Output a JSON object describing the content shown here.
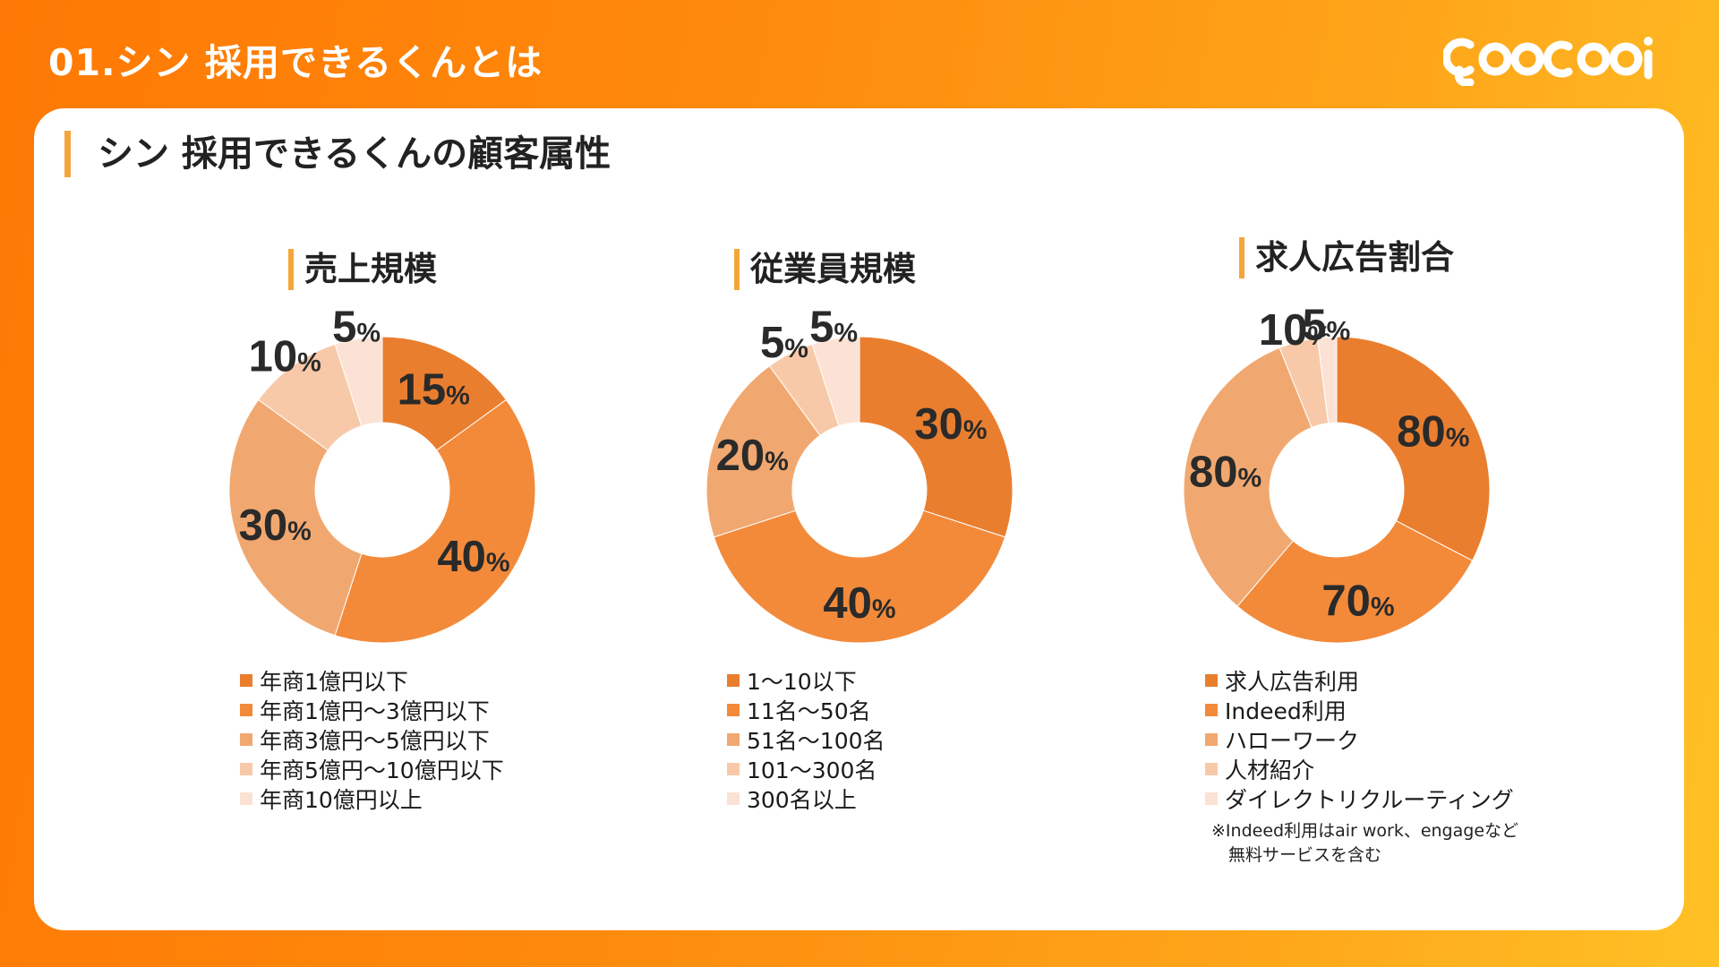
{
  "header": {
    "title": "01.シン 採用できるくんとは"
  },
  "card": {
    "title": "シン 採用できるくんの顧客属性"
  },
  "palette": [
    "#ea7e2f",
    "#f38a3a",
    "#f1a870",
    "#f8c9a8",
    "#fbe2d4"
  ],
  "chart_data": [
    {
      "type": "pie",
      "title": "売上規模",
      "categories": [
        "年商1億円以下",
        "年商1億円〜3億円以下",
        "年商3億円〜5億円以下",
        "年商5億円〜10億円以下",
        "年商10億円以上"
      ],
      "values": [
        15,
        40,
        30,
        10,
        5
      ],
      "value_labels": [
        "15",
        "40",
        "30",
        "10",
        "5"
      ],
      "unit": "%",
      "legend_position": "bottom"
    },
    {
      "type": "pie",
      "title": "従業員規模",
      "categories": [
        "1〜10以下",
        "11名〜50名",
        "51名〜100名",
        "101〜300名",
        "300名以上"
      ],
      "values": [
        30,
        40,
        20,
        5,
        5
      ],
      "value_labels": [
        "30",
        "40",
        "20",
        "5",
        "5"
      ],
      "unit": "%",
      "legend_position": "bottom"
    },
    {
      "type": "pie",
      "title": "求人広告割合",
      "categories": [
        "求人広告利用",
        "Indeed利用",
        "ハローワーク",
        "人材紹介",
        "ダイレクトリクルーティング"
      ],
      "values": [
        32.7,
        28.6,
        32.7,
        4.1,
        2.0
      ],
      "value_labels": [
        "80",
        "70",
        "80",
        "10",
        "5"
      ],
      "unit": "%",
      "legend_position": "bottom",
      "footnote": "※Indeed利用はair work、engageなど\n　無料サービスを含む"
    }
  ]
}
